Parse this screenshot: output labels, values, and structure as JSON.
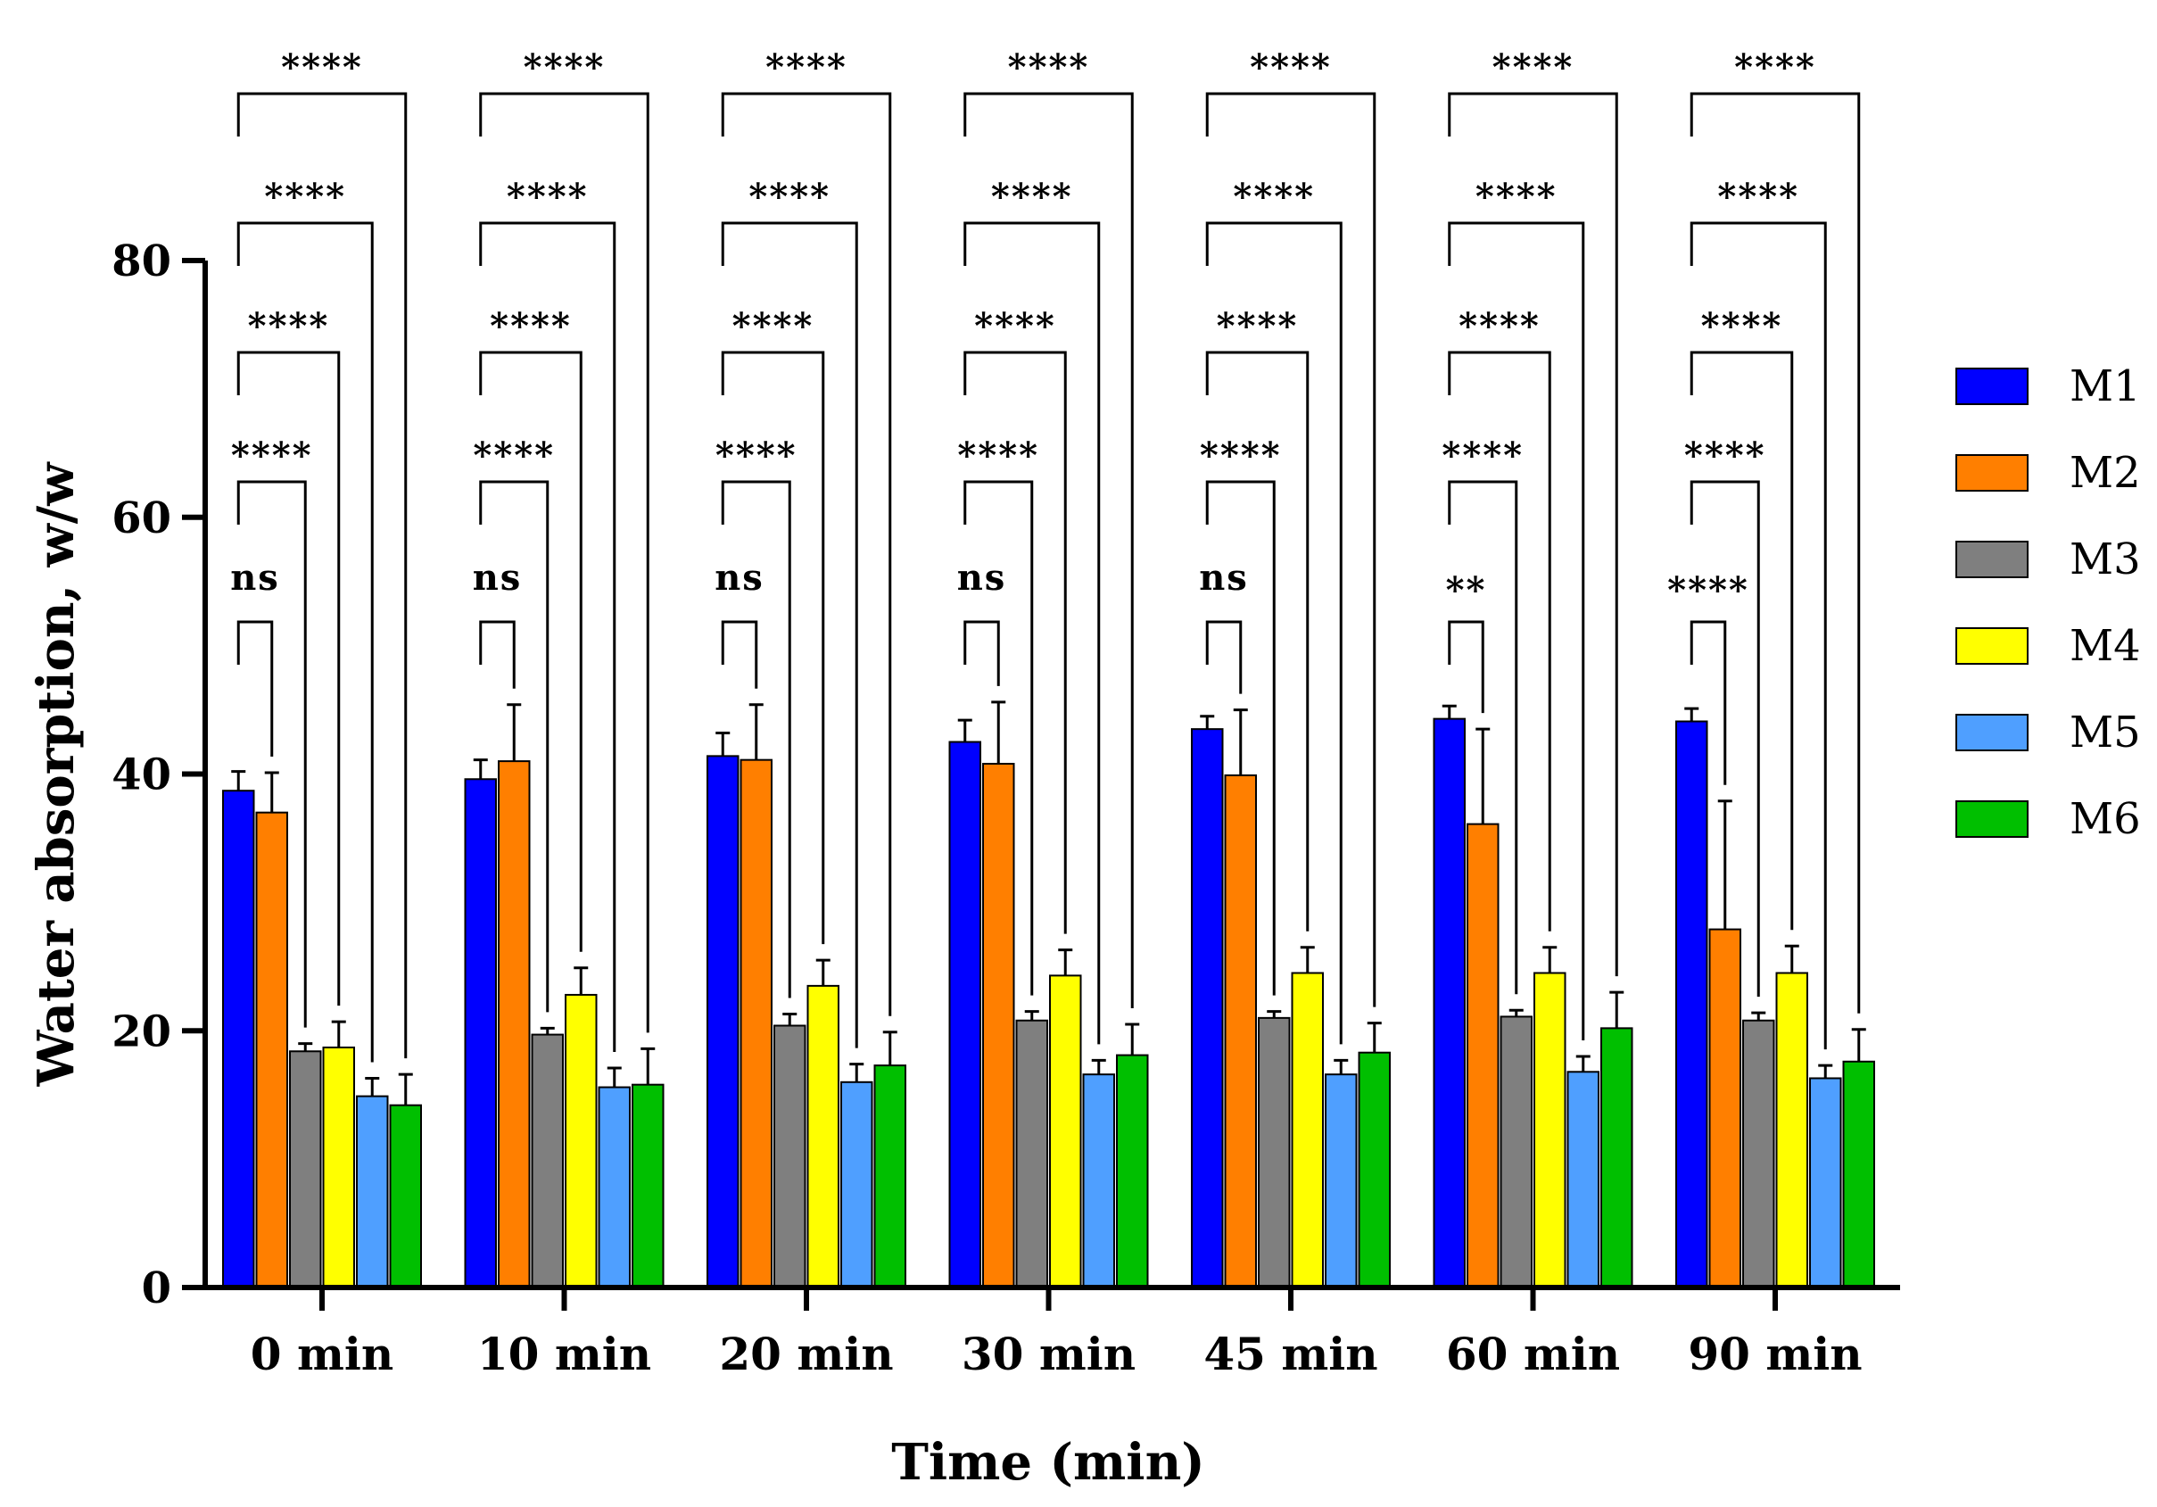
{
  "chart_data": {
    "type": "bar",
    "title": "",
    "xlabel": "Time (min)",
    "ylabel": "Water absorption, w/w",
    "ylim": [
      0,
      80
    ],
    "yticks": [
      0,
      20,
      40,
      60,
      80
    ],
    "categories": [
      "0 min",
      "10 min",
      "20 min",
      "30 min",
      "45 min",
      "60 min",
      "90 min"
    ],
    "legend_position": "right",
    "series": [
      {
        "name": "M1",
        "color": "#0000ff",
        "values": [
          38.7,
          39.6,
          41.4,
          42.5,
          43.5,
          44.3,
          44.1
        ],
        "errors": [
          1.5,
          1.5,
          1.8,
          1.7,
          1.0,
          1.0,
          1.0
        ]
      },
      {
        "name": "M2",
        "color": "#ff7f00",
        "values": [
          37.0,
          41.0,
          41.1,
          40.8,
          39.9,
          36.1,
          27.9
        ],
        "errors": [
          3.1,
          4.4,
          4.3,
          4.8,
          5.1,
          7.4,
          10.0
        ]
      },
      {
        "name": "M3",
        "color": "#7f7f7f",
        "values": [
          18.4,
          19.7,
          20.4,
          20.8,
          21.0,
          21.1,
          20.8
        ],
        "errors": [
          0.6,
          0.5,
          0.9,
          0.7,
          0.5,
          0.5,
          0.6
        ]
      },
      {
        "name": "M4",
        "color": "#ffff00",
        "values": [
          18.7,
          22.8,
          23.5,
          24.3,
          24.5,
          24.5,
          24.5
        ],
        "errors": [
          2.0,
          2.1,
          2.0,
          2.0,
          2.0,
          2.0,
          2.1
        ]
      },
      {
        "name": "M5",
        "color": "#4f9fff",
        "values": [
          14.9,
          15.6,
          16.0,
          16.6,
          16.6,
          16.8,
          16.3
        ],
        "errors": [
          1.4,
          1.5,
          1.4,
          1.1,
          1.1,
          1.2,
          1.0
        ]
      },
      {
        "name": "M6",
        "color": "#00bf00",
        "values": [
          14.2,
          15.8,
          17.3,
          18.1,
          18.3,
          20.2,
          17.6
        ],
        "errors": [
          2.4,
          2.8,
          2.6,
          2.4,
          2.3,
          2.8,
          2.5
        ]
      }
    ],
    "comparisons": [
      {
        "vs": "M2",
        "labels": [
          "ns",
          "ns",
          "ns",
          "ns",
          "ns",
          "**",
          "****"
        ]
      },
      {
        "vs": "M3",
        "labels": [
          "****",
          "****",
          "****",
          "****",
          "****",
          "****",
          "****"
        ]
      },
      {
        "vs": "M4",
        "labels": [
          "****",
          "****",
          "****",
          "****",
          "****",
          "****",
          "****"
        ]
      },
      {
        "vs": "M5",
        "labels": [
          "****",
          "****",
          "****",
          "****",
          "****",
          "****",
          "****"
        ]
      },
      {
        "vs": "M6",
        "labels": [
          "****",
          "****",
          "****",
          "****",
          "****",
          "****",
          "****"
        ]
      }
    ]
  }
}
